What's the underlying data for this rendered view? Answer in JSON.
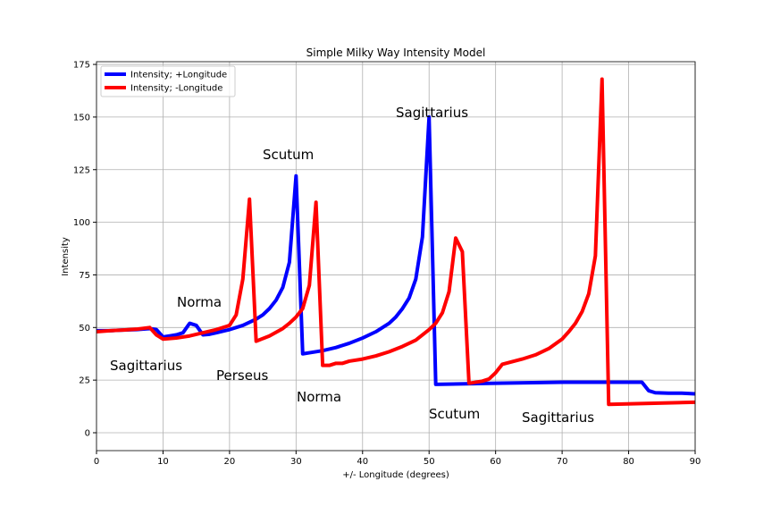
{
  "chart_data": {
    "type": "line",
    "title": "Simple Milky Way Intensity Model",
    "xlabel": "+/- Longitude (degrees)",
    "ylabel": "Intensity",
    "xlim": [
      0,
      90
    ],
    "ylim": [
      -8.5,
      176.3
    ],
    "xticks": [
      0,
      10,
      20,
      30,
      40,
      50,
      60,
      70,
      80,
      90
    ],
    "yticks": [
      0,
      25,
      50,
      75,
      100,
      125,
      150,
      175
    ],
    "grid": true,
    "legend": "upper left",
    "annotations": [
      "Sagittarius",
      "Norma",
      "Perseus",
      "Scutum",
      "Norma",
      "Sagittarius",
      "Scutum",
      "Sagittarius"
    ],
    "series": [
      {
        "name": "Intensity; +Longitude",
        "color": "#0000ff",
        "x": [
          0,
          2,
          4,
          6,
          8,
          9,
          10,
          11,
          12,
          13,
          14,
          15,
          16,
          17,
          18,
          20,
          22,
          24,
          25,
          26,
          27,
          28,
          29,
          30,
          31,
          32,
          34,
          36,
          38,
          40,
          42,
          44,
          45,
          46,
          47,
          48,
          49,
          50,
          51,
          60,
          70,
          80,
          82,
          83,
          84,
          86,
          88,
          90
        ],
        "values": [
          48.5,
          48.5,
          48.8,
          49,
          49.5,
          49,
          45.5,
          46,
          46.5,
          47.5,
          52,
          51,
          46.5,
          46.8,
          47.5,
          49,
          51,
          54,
          56,
          59,
          63,
          69,
          81,
          122,
          37.5,
          38,
          39,
          40.5,
          42.5,
          45,
          48,
          52,
          55,
          59,
          64,
          73,
          93,
          150,
          23,
          23.5,
          24,
          24,
          24,
          20,
          19,
          18.8,
          18.8,
          18.5
        ]
      },
      {
        "name": "Intensity; -Longitude",
        "color": "#ff0000",
        "x": [
          0,
          2,
          4,
          6,
          8,
          9,
          10,
          12,
          14,
          16,
          18,
          20,
          21,
          22,
          23,
          24,
          26,
          28,
          29,
          30,
          31,
          32,
          33,
          34,
          35,
          36,
          37,
          38,
          40,
          42,
          44,
          46,
          48,
          49,
          50,
          51,
          52,
          53,
          54,
          55,
          56,
          58,
          59,
          60,
          61,
          64,
          66,
          68,
          70,
          71,
          72,
          73,
          74,
          75,
          76,
          77,
          90
        ],
        "values": [
          48,
          48.5,
          48.8,
          49.2,
          50,
          46.5,
          44.5,
          45,
          46,
          47.5,
          49,
          51,
          56,
          73,
          111,
          43.5,
          46,
          49.5,
          52,
          55,
          59,
          70,
          109.5,
          32,
          32,
          33,
          33,
          34,
          35,
          36.5,
          38.5,
          41,
          44,
          46.5,
          49,
          52,
          57,
          67,
          92.5,
          86,
          23.5,
          24.5,
          25.5,
          28.5,
          32.5,
          35,
          37,
          40,
          44.5,
          48,
          52,
          57.5,
          66,
          84,
          168,
          13.5,
          14.5
        ]
      }
    ]
  }
}
